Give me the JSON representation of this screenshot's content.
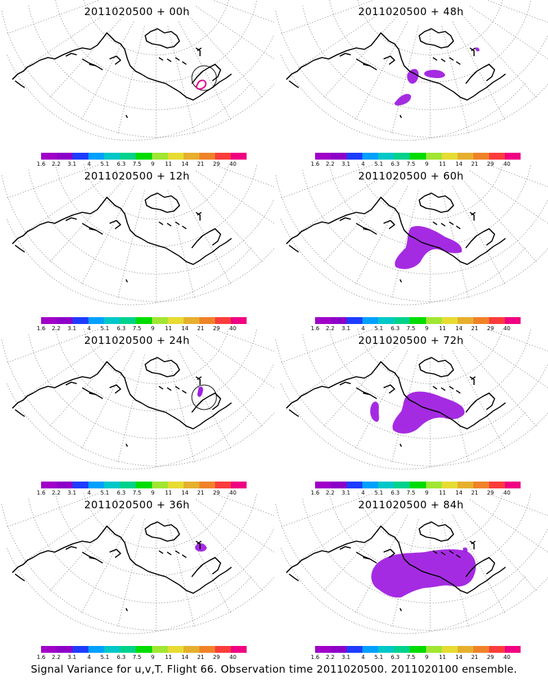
{
  "panels": [
    {
      "title": "2011020500 + 00h",
      "blobs": [],
      "pink_ring": true,
      "circle": true,
      "circle_mark": false
    },
    {
      "title": "2011020500 + 48h",
      "blobs": [
        "b48a",
        "b48b",
        "b48c",
        "b48d"
      ],
      "pink_ring": false,
      "circle": false,
      "circle_mark": false
    },
    {
      "title": "2011020500 + 12h",
      "blobs": [],
      "pink_ring": false,
      "circle": false,
      "circle_mark": false
    },
    {
      "title": "2011020500 + 60h",
      "blobs": [
        "b60a"
      ],
      "pink_ring": false,
      "circle": false,
      "circle_mark": false
    },
    {
      "title": "2011020500 + 24h",
      "blobs": [],
      "pink_ring": false,
      "circle": true,
      "circle_mark": true
    },
    {
      "title": "2011020500 + 72h",
      "blobs": [
        "b72a",
        "b72b"
      ],
      "pink_ring": false,
      "circle": false,
      "circle_mark": false
    },
    {
      "title": "2011020500 + 36h",
      "blobs": [
        "b36a"
      ],
      "pink_ring": false,
      "circle": false,
      "circle_mark": false
    },
    {
      "title": "2011020500 + 84h",
      "blobs": [
        "b84a",
        "b84b"
      ],
      "pink_ring": false,
      "circle": false,
      "circle_mark": false
    }
  ],
  "legend": {
    "colors": [
      "#a000c8",
      "#8c00c8",
      "#1e3cff",
      "#00a0ff",
      "#00c8c8",
      "#00d28c",
      "#00dc00",
      "#a0e632",
      "#e6dc32",
      "#e6af2d",
      "#f08228",
      "#fa3c3c",
      "#f00082"
    ],
    "ticks": [
      "1.6",
      "2.2",
      "3.1",
      "4",
      "5.1",
      "6.3",
      "7.5",
      "9",
      "11",
      "14",
      "21",
      "29",
      "40"
    ]
  },
  "footer": "Signal Variance for u,v,T. Flight 66. Observation time 2011020500. 2011020100 ensemble.",
  "colors": {
    "variance_fill": "#a020e0",
    "ring": "#e0108a",
    "coast": "#000000",
    "grid": "#888888"
  }
}
